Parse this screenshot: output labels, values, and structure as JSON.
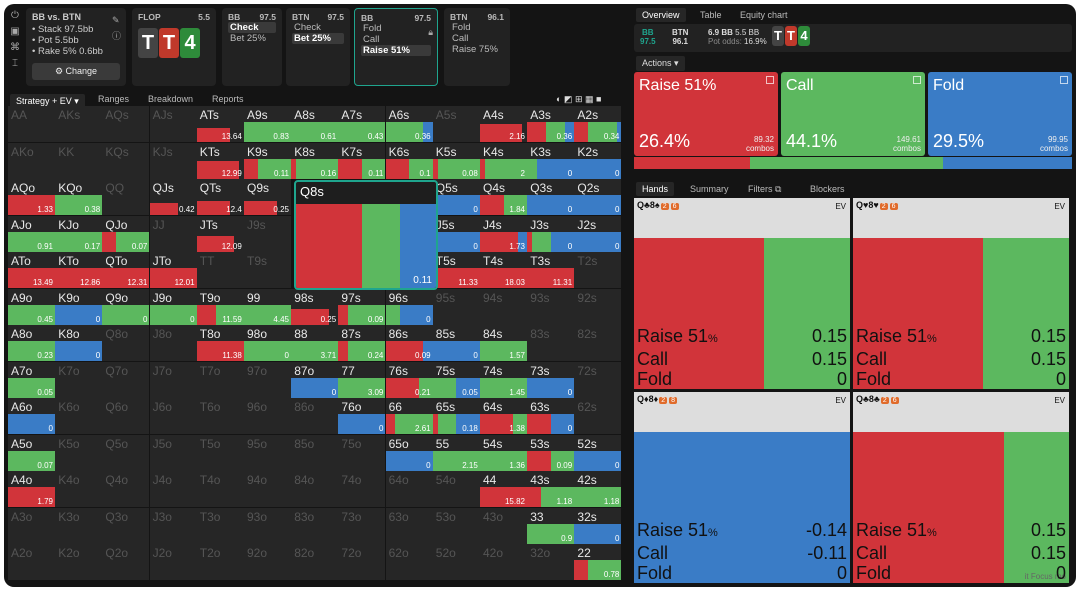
{
  "colors": {
    "raise": "#d1343a",
    "call": "#5cb85f",
    "fold": "#3a7cc6",
    "accent": "#1fa58e"
  },
  "side_icons": [
    "power-icon",
    "save-icon",
    "gamepad-icon",
    "text-cursor-icon"
  ],
  "spot": {
    "title": "BB vs. BTN",
    "stack": "• Stack 97.5bb",
    "pot": "• Pot 5.5bb",
    "rake": "• Rake 5% 0.6bb",
    "change": "⚙ Change"
  },
  "streets": [
    {
      "name": "FLOP",
      "value": "5.5",
      "cards": [
        {
          "r": "T",
          "c": "#444"
        },
        {
          "r": "T",
          "c": "#c0392b"
        },
        {
          "r": "4",
          "c": "#2e8b3a"
        }
      ]
    },
    {
      "name": "BB",
      "value": "97.5",
      "options": [
        "Check",
        "Bet 25%"
      ],
      "sel": 0
    },
    {
      "name": "BTN",
      "value": "97.5",
      "options": [
        "Check",
        "Bet 25%"
      ],
      "sel": 1
    },
    {
      "name": "BB",
      "value": "97.5",
      "options": [
        "Fold",
        "Call",
        "Raise 51%"
      ],
      "sel": 2,
      "active": true
    },
    {
      "name": "BTN",
      "value": "96.1",
      "options": [
        "Fold",
        "Call",
        "Raise 75%"
      ]
    }
  ],
  "tabs": {
    "strategy": "Strategy + EV ▾",
    "ranges": "Ranges",
    "breakdown": "Breakdown",
    "reports": "Reports"
  },
  "grid_ranks": [
    "A",
    "K",
    "Q",
    "J",
    "T",
    "9",
    "8",
    "7",
    "6",
    "5",
    "4",
    "3",
    "2"
  ],
  "grid": [
    [
      "AA|f",
      "AKs|f",
      "AQs|f",
      "AJs|f",
      "ATs|13.64|0.7,0,0",
      "A9s|0.83|0,1,0",
      "A8s|0.61|0,1,0",
      "A7s|0.43|0,1,0",
      "A6s|0.36|0,0.8,0.2",
      "A5s|f",
      "A4s|2.16|0.9,0,0",
      "A3s|0.36|0.4,0.4,0.2",
      "A2s|0.34|0.3,0.6,0.1"
    ],
    [
      "AKo|f",
      "KK|f",
      "KQs|f",
      "KJs|f",
      "KTs|12.99|0.9,0,0",
      "K9s|0.11|0.3,0.7,0",
      "K8s|0.16|0.1,0.9,0",
      "K7s|0.11|0.5,0.5,0",
      "K6s|0.1|0.5,0.5,0",
      "K5s|0.08|0.1,0.9,0",
      "K4s|2|0.1,0.9,0",
      "K3s|0|0,0.2,0.8",
      "K2s|0|0,0,1"
    ],
    [
      "AQo|1.33|1,0,0",
      "KQo|0.38|0,1,0",
      "QQ|f",
      "QJs|0.42|0.6,0,0",
      "QTs|12.4|0.7,0,0",
      "Q9s|0.25|0.7,0,0",
      "Q8s|z",
      "Q7s|z",
      "Q6s|z",
      "Q5s|0|0,0,1",
      "Q4s|1.84|0.5,0.5,0",
      "Q3s|0|0,0,1",
      "Q2s|0|0,0,1"
    ],
    [
      "AJo|0.91|0,1,0",
      "KJo|0.17|0,1,0",
      "QJo|0.07|0.3,0.7,0",
      "JJ|f",
      "JTs|12.09|0.8,0,0",
      "J9s|f",
      "J8s|z",
      "J7s|z",
      "J6s|z",
      "J5s|0|0,0,1",
      "J4s|1.73|0.8,0,0.2",
      "J3s|0|0.1,0.4,0.5",
      "J2s|0|0,0,1"
    ],
    [
      "ATo|13.49|1,0,0",
      "KTo|12.86|1,0,0",
      "QTo|12.31|1,0,0",
      "JTo|12.01|1,0,0",
      "TT|f",
      "T9s|f",
      "T8s|z",
      "T7s|z",
      "T6s|z",
      "T5s|11.33|1,0,0",
      "T4s|18.03|1,0,0",
      "T3s|11.31|1,0,0",
      "T2s|f"
    ],
    [
      "A9o|0.45|0,1,0",
      "K9o|0|0,0,1",
      "Q9o|0|0,1,0",
      "J9o|0|0,1,0",
      "T9o|11.59|0.4,0.6,0",
      "99|4.45|0,1,0",
      "98s|0.25|0.8,0,0",
      "97s|0.09|0.2,0.8,0",
      "96s|0|0,0.3,0.7",
      "95s|f",
      "94s|f",
      "93s|f",
      "92s|f"
    ],
    [
      "A8o|0.23|0,1,0",
      "K8o|0|0,0,1",
      "Q8o|f",
      "J8o|f",
      "T8o|11.38|1,0,0",
      "98o|0|0,1,0",
      "88|3.71|0,1,0",
      "87s|0.24|0.2,0.8,0",
      "86s|0.09|0.8,0,0.2",
      "85s|0|0,0,1",
      "84s|1.57|0,1,0",
      "83s|f",
      "82s|f"
    ],
    [
      "A7o|0.05|0,1,0",
      "K7o|f",
      "Q7o|f",
      "J7o|f",
      "T7o|f",
      "97o|f",
      "87o|0|0,0,1",
      "77|3.09|0,1,0",
      "76s|0.21|0.7,0.3,0",
      "75s|0.05|0,0.5,0.5",
      "74s|1.45|0,1,0",
      "73s|0|0,0,1",
      "72s|f"
    ],
    [
      "A6o|0|0,0,1",
      "K6o|f",
      "Q6o|f",
      "J6o|f",
      "T6o|f",
      "96o|f",
      "86o|f",
      "76o|0|0,0,1",
      "66|2.61|0.2,0.8,0",
      "65s|0.18|0.1,0.4,0.5",
      "64s|1.38|0.7,0.3,0",
      "63s|0|0.5,0,0.5",
      "62s|f"
    ],
    [
      "A5o|0.07|0,1,0",
      "K5o|f",
      "Q5o|f",
      "J5o|f",
      "T5o|f",
      "95o|f",
      "85o|f",
      "75o|f",
      "65o|0|0,0,1",
      "55|2.15|0,1,0",
      "54s|1.36|0,1,0",
      "53s|0.09|0.5,0.5,0",
      "52s|0|0,0,1"
    ],
    [
      "A4o|1.79|1,0,0",
      "K4o|f",
      "Q4o|f",
      "J4o|f",
      "T4o|f",
      "94o|f",
      "84o|f",
      "74o|f",
      "64o|f",
      "54o|f",
      "44|15.82|1,0,0",
      "43s|1.18|0.3,0.7,0",
      "42s|1.18|0,1,0"
    ],
    [
      "A3o|f",
      "K3o|f",
      "Q3o|f",
      "J3o|f",
      "T3o|f",
      "93o|f",
      "83o|f",
      "73o|f",
      "63o|f",
      "53o|f",
      "43o|f",
      "33|0.9|0,1,0",
      "32s|0|0,0,1"
    ],
    [
      "A2o|f",
      "K2o|f",
      "Q2o|f",
      "J2o|f",
      "T2o|f",
      "92o|f",
      "82o|f",
      "72o|f",
      "62o|f",
      "52o|f",
      "42o|f",
      "32o|f",
      "22|0.78|0.3,0.7,0"
    ]
  ],
  "zoom": {
    "label": "Q8s",
    "ev": "0.11",
    "mix": [
      0.47,
      0.27,
      0.26
    ]
  },
  "right": {
    "tabs": [
      "Overview",
      "Table",
      "Equity chart"
    ],
    "info": {
      "bb": "BB",
      "bbv": "97.5",
      "btn": "BTN",
      "btnv": "96.1",
      "pot": "6.9 BB",
      "potodds": "Pot odds:",
      "eff": "5.5 BB",
      "pct": "16.9%"
    },
    "actions_label": "Actions ▾",
    "big": [
      {
        "name": "Raise 51%",
        "pct": "26.4%",
        "combos": "89.32",
        "cl": "combos"
      },
      {
        "name": "Call",
        "pct": "44.1%",
        "combos": "149.61",
        "cl": "combos"
      },
      {
        "name": "Fold",
        "pct": "29.5%",
        "combos": "99.95",
        "cl": "combos"
      }
    ],
    "agg": [
      0.264,
      0.441,
      0.295
    ],
    "hand_tabs": [
      "Hands",
      "Summary",
      "Filters ⧉",
      "Blockers"
    ],
    "hands": [
      {
        "cards": "Q♣8♠",
        "t1": "2",
        "t2": "6",
        "ev": "EV",
        "raise": "0.15",
        "call": "0.15",
        "fold": "0",
        "mix": [
          0.6,
          0.4,
          0
        ]
      },
      {
        "cards": "Q♥8♥",
        "t1": "2",
        "t2": "6",
        "ev": "EV",
        "raise": "0.15",
        "call": "0.15",
        "fold": "0",
        "mix": [
          0.6,
          0.4,
          0
        ]
      },
      {
        "cards": "Q♦8♦",
        "t1": "2",
        "t2": "8",
        "ev": "EV",
        "raise": "-0.14",
        "call": "-0.11",
        "fold": "0",
        "mix": [
          0,
          0,
          1
        ]
      },
      {
        "cards": "Q♣8♣",
        "t1": "2",
        "t2": "6",
        "ev": "EV",
        "raise": "0.15",
        "call": "0.15",
        "fold": "0",
        "mix": [
          0.7,
          0.3,
          0
        ]
      }
    ],
    "row_raise": "Raise 51",
    "row_pct": "%",
    "row_call": "Call",
    "row_fold": "Fold",
    "focus": "it Focus mo"
  }
}
